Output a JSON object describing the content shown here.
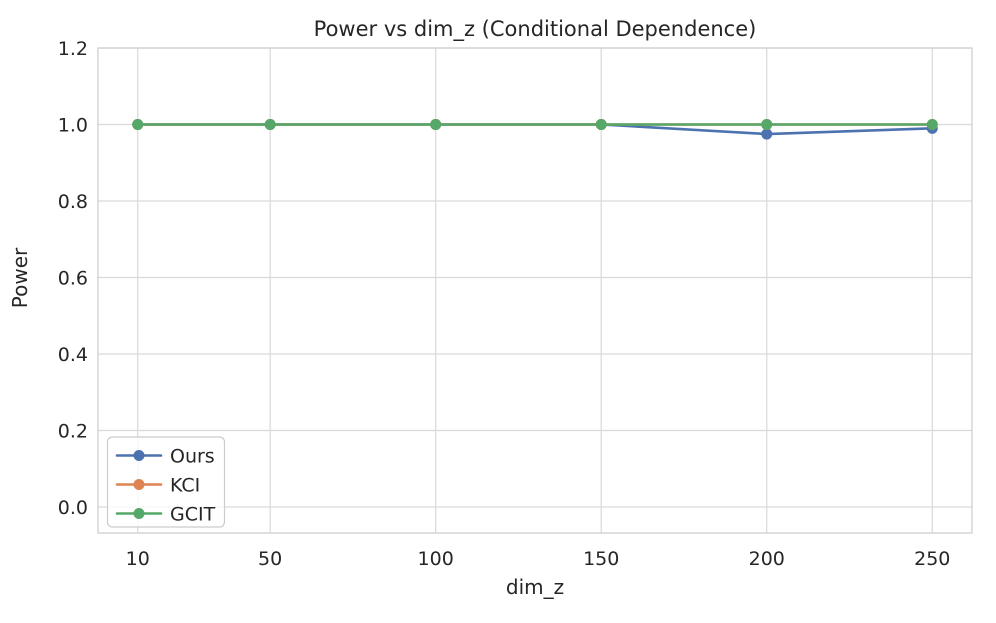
{
  "chart_data": {
    "type": "line",
    "title": "Power vs dim_z (Conditional Dependence)",
    "xlabel": "dim_z",
    "ylabel": "Power",
    "x": [
      10,
      50,
      100,
      150,
      200,
      250
    ],
    "series": [
      {
        "name": "Ours",
        "color": "#4C72B0",
        "values": [
          1.0,
          1.0,
          1.0,
          1.0,
          0.975,
          0.99
        ]
      },
      {
        "name": "KCI",
        "color": "#DD8452",
        "values": [
          1.0,
          1.0,
          1.0,
          1.0,
          1.0,
          1.0
        ]
      },
      {
        "name": "GCIT",
        "color": "#55A868",
        "values": [
          1.0,
          1.0,
          1.0,
          1.0,
          1.0,
          1.0
        ]
      }
    ],
    "xticks": [
      10,
      50,
      100,
      150,
      200,
      250
    ],
    "yticks": [
      0.0,
      0.2,
      0.4,
      0.6,
      0.8,
      1.0,
      1.2
    ],
    "xlim": [
      -2,
      262
    ],
    "ylim": [
      -0.068,
      1.2
    ],
    "grid": true,
    "legend_position": "lower left",
    "colors": {
      "grid": "#d9d9d9",
      "axis_border": "#cccccc",
      "text": "#262626",
      "legend_face": "#ffffff",
      "legend_edge": "#cccccc"
    }
  }
}
